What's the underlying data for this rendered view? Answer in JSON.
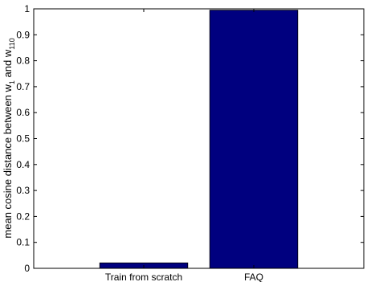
{
  "chart_data": {
    "type": "bar",
    "categories": [
      "Train from scratch",
      "FAQ"
    ],
    "values": [
      0.021,
      0.995
    ],
    "ylabel": {
      "prefix": "mean cosine distance between w",
      "sub1": "1",
      "middle": " and w",
      "sub2": "110"
    },
    "xlabel": "",
    "ylim": [
      0,
      1
    ],
    "yticks": [
      "0",
      "0.1",
      "0.2",
      "0.3",
      "0.4",
      "0.5",
      "0.6",
      "0.7",
      "0.8",
      "0.9",
      "1"
    ],
    "grid": false,
    "legend": "none",
    "bar_color": "#00007f"
  }
}
